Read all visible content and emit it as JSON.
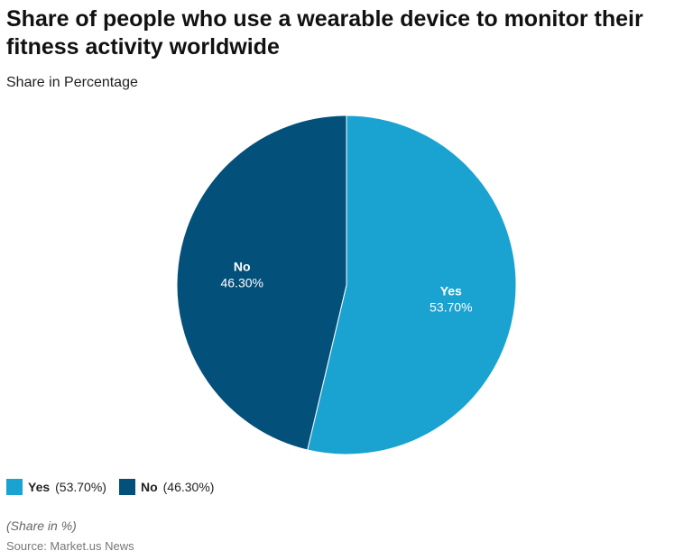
{
  "chart_data": {
    "type": "pie",
    "title": "Share of people who use a wearable device to monitor their fitness activity worldwide",
    "subtitle": "Share in Percentage",
    "slices": [
      {
        "label": "Yes",
        "value": 53.7,
        "display": "53.70%",
        "legend_value": "(53.70%)",
        "color": "#1aa3d0"
      },
      {
        "label": "No",
        "value": 46.3,
        "display": "46.30%",
        "legend_value": "(46.30%)",
        "color": "#03507a"
      }
    ],
    "legend_placement": "bottom-left",
    "note": "(Share in %)",
    "source": "Source: Market.us News"
  }
}
